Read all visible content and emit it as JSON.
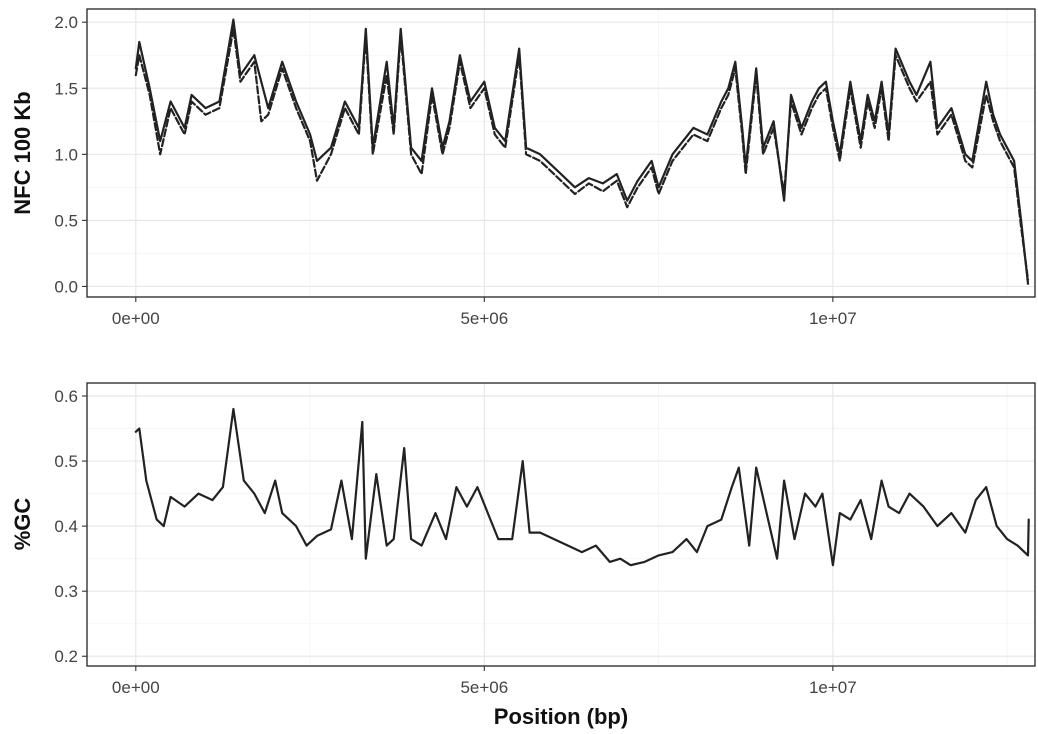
{
  "chart_data": [
    {
      "type": "line",
      "title": "",
      "xlabel": "",
      "ylabel": "NFC 100 Kb",
      "xlim": [
        -700000,
        12900000
      ],
      "ylim": [
        -0.08,
        2.1
      ],
      "x_ticks": [
        0,
        5000000,
        10000000
      ],
      "x_tick_labels": [
        "0e+00",
        "5e+06",
        "1e+07"
      ],
      "y_ticks": [
        0.0,
        0.5,
        1.0,
        1.5,
        2.0
      ],
      "y_tick_labels": [
        "0.0",
        "0.5",
        "1.0",
        "1.5",
        "2.0"
      ],
      "grid": true,
      "series": [
        {
          "style": "solid",
          "x": [
            0,
            50000,
            200000,
            350000,
            500000,
            700000,
            800000,
            1000000,
            1200000,
            1400000,
            1500000,
            1700000,
            1900000,
            2100000,
            2300000,
            2500000,
            2600000,
            2800000,
            3000000,
            3200000,
            3300000,
            3400000,
            3600000,
            3700000,
            3800000,
            3950000,
            4100000,
            4250000,
            4400000,
            4500000,
            4650000,
            4800000,
            5000000,
            5150000,
            5300000,
            5500000,
            5600000,
            5800000,
            6100000,
            6300000,
            6500000,
            6700000,
            6900000,
            7050000,
            7200000,
            7400000,
            7500000,
            7700000,
            8000000,
            8200000,
            8400000,
            8500000,
            8600000,
            8700000,
            8750000,
            8900000,
            9000000,
            9150000,
            9300000,
            9400000,
            9550000,
            9700000,
            9800000,
            9900000,
            10000000,
            10100000,
            10250000,
            10400000,
            10500000,
            10600000,
            10700000,
            10800000,
            10900000,
            11100000,
            11200000,
            11400000,
            11500000,
            11700000,
            11900000,
            12000000,
            12200000,
            12300000,
            12400000,
            12500000,
            12600000,
            12700000,
            12800000
          ],
          "y": [
            1.65,
            1.85,
            1.5,
            1.1,
            1.4,
            1.2,
            1.45,
            1.35,
            1.4,
            2.02,
            1.6,
            1.75,
            1.35,
            1.7,
            1.4,
            1.15,
            0.95,
            1.05,
            1.4,
            1.2,
            1.95,
            1.05,
            1.7,
            1.2,
            1.95,
            1.05,
            0.95,
            1.5,
            1.05,
            1.25,
            1.75,
            1.4,
            1.55,
            1.2,
            1.1,
            1.8,
            1.05,
            1.0,
            0.85,
            0.75,
            0.82,
            0.78,
            0.85,
            0.65,
            0.8,
            0.95,
            0.75,
            1.0,
            1.2,
            1.15,
            1.4,
            1.5,
            1.7,
            1.2,
            0.9,
            1.65,
            1.05,
            1.25,
            0.65,
            1.45,
            1.2,
            1.4,
            1.5,
            1.55,
            1.25,
            1.0,
            1.55,
            1.1,
            1.45,
            1.25,
            1.55,
            1.15,
            1.8,
            1.55,
            1.45,
            1.7,
            1.2,
            1.35,
            1.0,
            0.95,
            1.55,
            1.3,
            1.15,
            1.05,
            0.95,
            0.5,
            0.02
          ]
        },
        {
          "style": "dashed",
          "x": [
            0,
            50000,
            200000,
            350000,
            500000,
            700000,
            800000,
            1000000,
            1200000,
            1400000,
            1500000,
            1700000,
            1800000,
            1900000,
            2100000,
            2300000,
            2500000,
            2600000,
            2800000,
            3000000,
            3200000,
            3300000,
            3400000,
            3600000,
            3700000,
            3800000,
            3950000,
            4100000,
            4250000,
            4400000,
            4500000,
            4650000,
            4800000,
            5000000,
            5150000,
            5300000,
            5500000,
            5600000,
            5800000,
            6100000,
            6300000,
            6500000,
            6700000,
            6900000,
            7050000,
            7200000,
            7400000,
            7500000,
            7700000,
            8000000,
            8200000,
            8400000,
            8500000,
            8600000,
            8700000,
            8750000,
            8900000,
            9000000,
            9150000,
            9300000,
            9400000,
            9550000,
            9700000,
            9800000,
            9900000,
            10000000,
            10100000,
            10250000,
            10400000,
            10500000,
            10600000,
            10700000,
            10800000,
            10900000,
            11100000,
            11200000,
            11400000,
            11500000,
            11700000,
            11900000,
            12000000,
            12200000,
            12300000,
            12400000,
            12500000,
            12600000,
            12700000,
            12800000
          ],
          "y": [
            1.6,
            1.75,
            1.45,
            1.0,
            1.35,
            1.15,
            1.4,
            1.3,
            1.35,
            1.95,
            1.55,
            1.7,
            1.25,
            1.3,
            1.65,
            1.35,
            1.1,
            0.8,
            1.0,
            1.35,
            1.15,
            1.9,
            1.0,
            1.6,
            1.15,
            1.9,
            1.0,
            0.85,
            1.45,
            1.0,
            1.2,
            1.7,
            1.35,
            1.5,
            1.15,
            1.05,
            1.75,
            1.0,
            0.95,
            0.8,
            0.7,
            0.78,
            0.72,
            0.8,
            0.6,
            0.75,
            0.9,
            0.7,
            0.95,
            1.15,
            1.1,
            1.35,
            1.45,
            1.65,
            1.15,
            0.85,
            1.6,
            1.0,
            1.2,
            0.7,
            1.4,
            1.15,
            1.35,
            1.45,
            1.5,
            1.2,
            0.95,
            1.5,
            1.05,
            1.4,
            1.2,
            1.5,
            1.1,
            1.75,
            1.5,
            1.4,
            1.55,
            1.15,
            1.3,
            0.95,
            0.9,
            1.45,
            1.25,
            1.1,
            1.0,
            0.9,
            0.45,
            0.05
          ]
        }
      ]
    },
    {
      "type": "line",
      "title": "",
      "xlabel": "Position (bp)",
      "ylabel": "%GC",
      "xlim": [
        -700000,
        12900000
      ],
      "ylim": [
        0.185,
        0.62
      ],
      "x_ticks": [
        0,
        5000000,
        10000000
      ],
      "x_tick_labels": [
        "0e+00",
        "5e+06",
        "1e+07"
      ],
      "y_ticks": [
        0.2,
        0.3,
        0.4,
        0.5,
        0.6
      ],
      "y_tick_labels": [
        "0.2",
        "0.3",
        "0.4",
        "0.5",
        "0.6"
      ],
      "grid": true,
      "series": [
        {
          "style": "solid",
          "x": [
            0,
            50000,
            150000,
            300000,
            400000,
            500000,
            700000,
            900000,
            1100000,
            1250000,
            1400000,
            1550000,
            1700000,
            1850000,
            2000000,
            2100000,
            2300000,
            2450000,
            2600000,
            2800000,
            2950000,
            3100000,
            3250000,
            3300000,
            3450000,
            3600000,
            3700000,
            3850000,
            3950000,
            4100000,
            4300000,
            4450000,
            4600000,
            4750000,
            4900000,
            5050000,
            5200000,
            5400000,
            5550000,
            5650000,
            5800000,
            6000000,
            6200000,
            6400000,
            6600000,
            6800000,
            6950000,
            7100000,
            7300000,
            7500000,
            7700000,
            7900000,
            8050000,
            8200000,
            8400000,
            8550000,
            8650000,
            8800000,
            8900000,
            9050000,
            9200000,
            9300000,
            9450000,
            9600000,
            9750000,
            9850000,
            10000000,
            10100000,
            10250000,
            10400000,
            10550000,
            10700000,
            10800000,
            10950000,
            11100000,
            11300000,
            11500000,
            11700000,
            11900000,
            12050000,
            12200000,
            12350000,
            12500000,
            12650000,
            12800000,
            12810000
          ],
          "y": [
            0.545,
            0.55,
            0.47,
            0.41,
            0.4,
            0.445,
            0.43,
            0.45,
            0.44,
            0.46,
            0.58,
            0.47,
            0.45,
            0.42,
            0.47,
            0.42,
            0.4,
            0.37,
            0.385,
            0.395,
            0.47,
            0.38,
            0.56,
            0.35,
            0.48,
            0.37,
            0.38,
            0.52,
            0.38,
            0.37,
            0.42,
            0.38,
            0.46,
            0.43,
            0.46,
            0.42,
            0.38,
            0.38,
            0.5,
            0.39,
            0.39,
            0.38,
            0.37,
            0.36,
            0.37,
            0.345,
            0.35,
            0.34,
            0.345,
            0.355,
            0.36,
            0.38,
            0.36,
            0.4,
            0.41,
            0.46,
            0.49,
            0.37,
            0.49,
            0.42,
            0.35,
            0.47,
            0.38,
            0.45,
            0.43,
            0.45,
            0.34,
            0.42,
            0.41,
            0.44,
            0.38,
            0.47,
            0.43,
            0.42,
            0.45,
            0.43,
            0.4,
            0.42,
            0.39,
            0.44,
            0.46,
            0.4,
            0.38,
            0.37,
            0.355,
            0.41
          ]
        }
      ]
    }
  ]
}
